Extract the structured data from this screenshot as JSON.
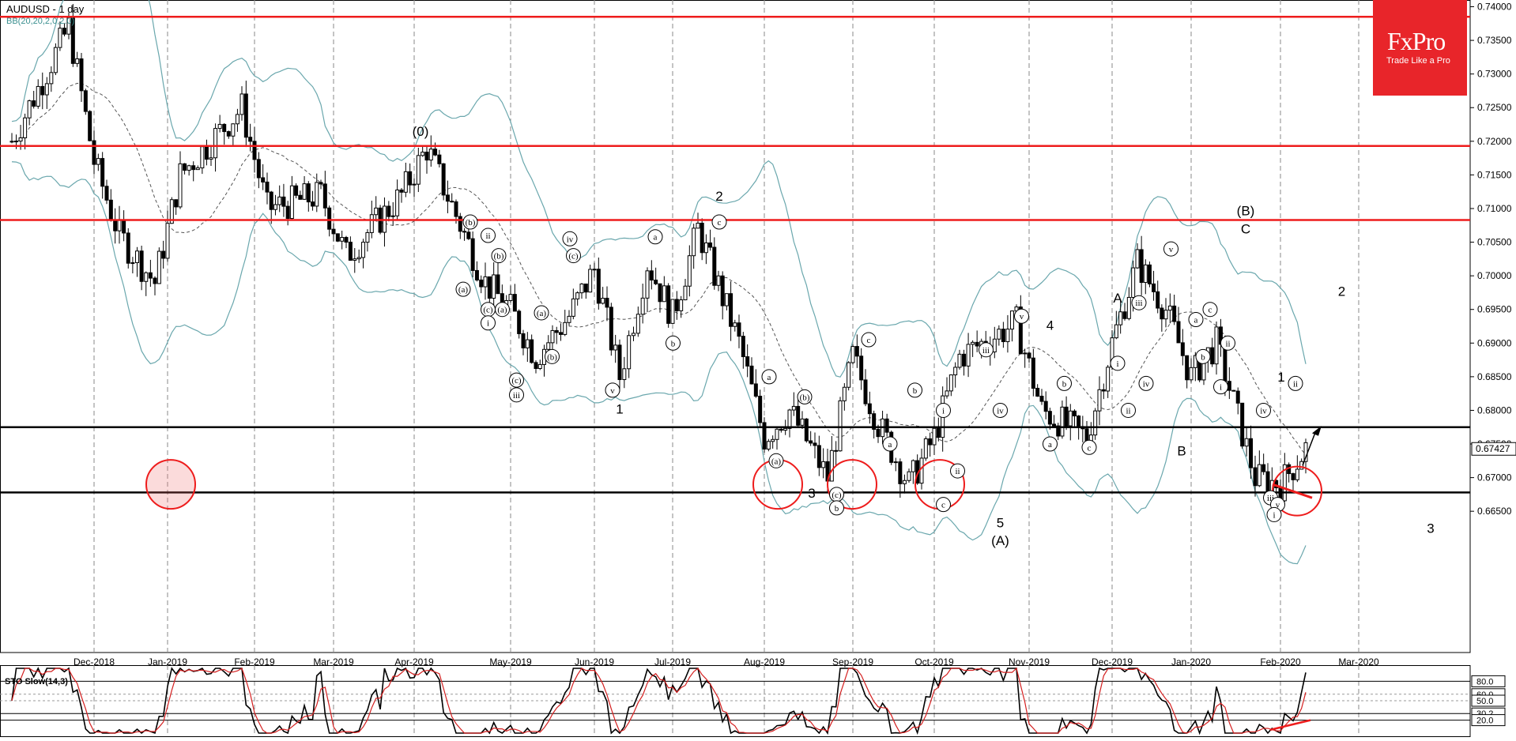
{
  "header": {
    "symbol_label": "AUDUSD - 1 day",
    "indicator_label": "BB(20,20,2,0,2.0)"
  },
  "logo": {
    "brand": "FxPro",
    "tagline": "Trade Like a Pro"
  },
  "oscillator": {
    "label": "STO Slow(14,3)",
    "levels": [
      "80.0",
      "60.0",
      "50.0",
      "30.2",
      "20.0"
    ]
  },
  "chart_data": {
    "type": "candlestick",
    "symbol": "AUDUSD",
    "timeframe": "1 day",
    "ylim": [
      0.644,
      0.741
    ],
    "price_ticks": [
      "0.74000",
      "0.73500",
      "0.73000",
      "0.72500",
      "0.72000",
      "0.71500",
      "0.71000",
      "0.70500",
      "0.70000",
      "0.69500",
      "0.69000",
      "0.68500",
      "0.68000",
      "0.67500",
      "0.67000",
      "0.66500"
    ],
    "current_price": "0.67427",
    "x_labels": [
      "Dec-2018",
      "Jan-2019",
      "Feb-2019",
      "Mar-2019",
      "Apr-2019",
      "May-2019",
      "Jun-2019",
      "Jul-2019",
      "Aug-2019",
      "Sep-2019",
      "Oct-2019",
      "Nov-2019",
      "Dec-2019",
      "Jan-2020",
      "Feb-2020",
      "Mar-2020"
    ],
    "grid": true,
    "red_levels": [
      0.7385,
      0.7193,
      0.7083
    ],
    "black_levels": [
      0.6775,
      0.6678
    ],
    "price_path": [
      {
        "date": "Nov-2018",
        "price": 0.72
      },
      {
        "date": "Dec-2018",
        "price": 0.737
      },
      {
        "date": "Dec-2018",
        "price": 0.717
      },
      {
        "date": "Dec-2018",
        "price": 0.706
      },
      {
        "date": "Jan-2019",
        "price": 0.699
      },
      {
        "date": "Jan-2019",
        "price": 0.715
      },
      {
        "date": "Feb-2019",
        "price": 0.725
      },
      {
        "date": "Feb-2019",
        "price": 0.71
      },
      {
        "date": "Mar-2019",
        "price": 0.712
      },
      {
        "date": "Mar-2019",
        "price": 0.703
      },
      {
        "date": "Apr-2019",
        "price": 0.712
      },
      {
        "date": "Apr-2019",
        "price": 0.719
      },
      {
        "date": "May-2019",
        "price": 0.699
      },
      {
        "date": "May-2019",
        "price": 0.695
      },
      {
        "date": "May-2019",
        "price": 0.688
      },
      {
        "date": "Jun-2019",
        "price": 0.694
      },
      {
        "date": "Jun-2019",
        "price": 0.701
      },
      {
        "date": "Jun-2019",
        "price": 0.685
      },
      {
        "date": "Jul-2019",
        "price": 0.702
      },
      {
        "date": "Jul-2019",
        "price": 0.694
      },
      {
        "date": "Jul-2019",
        "price": 0.707
      },
      {
        "date": "Aug-2019",
        "price": 0.69
      },
      {
        "date": "Aug-2019",
        "price": 0.676
      },
      {
        "date": "Aug-2019",
        "price": 0.68
      },
      {
        "date": "Sep-2019",
        "price": 0.67
      },
      {
        "date": "Sep-2019",
        "price": 0.688
      },
      {
        "date": "Sep-2019",
        "price": 0.678
      },
      {
        "date": "Oct-2019",
        "price": 0.669
      },
      {
        "date": "Oct-2019",
        "price": 0.676
      },
      {
        "date": "Oct-2019",
        "price": 0.688
      },
      {
        "date": "Nov-2019",
        "price": 0.693
      },
      {
        "date": "Nov-2019",
        "price": 0.68
      },
      {
        "date": "Dec-2019",
        "price": 0.676
      },
      {
        "date": "Dec-2019",
        "price": 0.69
      },
      {
        "date": "Dec-2019",
        "price": 0.702
      },
      {
        "date": "Jan-2020",
        "price": 0.695
      },
      {
        "date": "Jan-2020",
        "price": 0.685
      },
      {
        "date": "Jan-2020",
        "price": 0.69
      },
      {
        "date": "Feb-2020",
        "price": 0.67
      },
      {
        "date": "Feb-2020",
        "price": 0.669
      },
      {
        "date": "Feb-2020",
        "price": 0.6743
      }
    ],
    "annotations": [
      {
        "text": "(0)",
        "x_index": 11.6,
        "price": 0.7208
      },
      {
        "text": "2",
        "x_index": 20.0,
        "price": 0.7112
      },
      {
        "text": "4",
        "x_index": 29.3,
        "price": 0.692
      },
      {
        "text": "A",
        "x_index": 31.2,
        "price": 0.696
      },
      {
        "text": "(B)",
        "x_index": 34.8,
        "price": 0.709
      },
      {
        "text": "C",
        "x_index": 34.8,
        "price": 0.7063
      },
      {
        "text": "2",
        "x_index": 37.5,
        "price": 0.697
      },
      {
        "text": "1",
        "x_index": 17.2,
        "price": 0.6795
      },
      {
        "text": "3",
        "x_index": 22.6,
        "price": 0.667
      },
      {
        "text": "5",
        "x_index": 27.9,
        "price": 0.6626
      },
      {
        "text": "(A)",
        "x_index": 27.9,
        "price": 0.66
      },
      {
        "text": "B",
        "x_index": 33.0,
        "price": 0.6733
      },
      {
        "text": "1",
        "x_index": 35.8,
        "price": 0.6843
      },
      {
        "text": "3",
        "x_index": 40.0,
        "price": 0.6618
      }
    ],
    "circled_labels": [
      {
        "text": "(b)",
        "x_index": 13.0,
        "price": 0.708
      },
      {
        "text": "ii",
        "x_index": 13.5,
        "price": 0.706
      },
      {
        "text": "(b)",
        "x_index": 13.8,
        "price": 0.703
      },
      {
        "text": "(a)",
        "x_index": 12.8,
        "price": 0.698
      },
      {
        "text": "(c)",
        "x_index": 13.5,
        "price": 0.695
      },
      {
        "text": "(a)",
        "x_index": 13.9,
        "price": 0.695
      },
      {
        "text": "i",
        "x_index": 13.5,
        "price": 0.693
      },
      {
        "text": "(c)",
        "x_index": 14.3,
        "price": 0.6845
      },
      {
        "text": "iii",
        "x_index": 14.3,
        "price": 0.6823
      },
      {
        "text": "(a)",
        "x_index": 15.0,
        "price": 0.6945
      },
      {
        "text": "(b)",
        "x_index": 15.3,
        "price": 0.688
      },
      {
        "text": "iv",
        "x_index": 15.8,
        "price": 0.7055
      },
      {
        "text": "(c)",
        "x_index": 15.9,
        "price": 0.703
      },
      {
        "text": "v",
        "x_index": 17.0,
        "price": 0.683
      },
      {
        "text": "a",
        "x_index": 18.2,
        "price": 0.7058
      },
      {
        "text": "b",
        "x_index": 18.7,
        "price": 0.69
      },
      {
        "text": "c",
        "x_index": 20.0,
        "price": 0.708
      },
      {
        "text": "a",
        "x_index": 21.4,
        "price": 0.685
      },
      {
        "text": "(a)",
        "x_index": 21.6,
        "price": 0.6725
      },
      {
        "text": "(b)",
        "x_index": 22.4,
        "price": 0.682
      },
      {
        "text": "(c)",
        "x_index": 23.3,
        "price": 0.6675
      },
      {
        "text": "b",
        "x_index": 23.3,
        "price": 0.6655
      },
      {
        "text": "c",
        "x_index": 24.2,
        "price": 0.6905
      },
      {
        "text": "a",
        "x_index": 24.8,
        "price": 0.675
      },
      {
        "text": "b",
        "x_index": 25.5,
        "price": 0.683
      },
      {
        "text": "i",
        "x_index": 26.3,
        "price": 0.68
      },
      {
        "text": "c",
        "x_index": 26.3,
        "price": 0.666
      },
      {
        "text": "ii",
        "x_index": 26.7,
        "price": 0.671
      },
      {
        "text": "iii",
        "x_index": 27.5,
        "price": 0.689
      },
      {
        "text": "iv",
        "x_index": 27.9,
        "price": 0.68
      },
      {
        "text": "v",
        "x_index": 28.5,
        "price": 0.694
      },
      {
        "text": "a",
        "x_index": 29.3,
        "price": 0.675
      },
      {
        "text": "b",
        "x_index": 29.7,
        "price": 0.684
      },
      {
        "text": "c",
        "x_index": 30.4,
        "price": 0.6745
      },
      {
        "text": "i",
        "x_index": 31.2,
        "price": 0.687
      },
      {
        "text": "ii",
        "x_index": 31.5,
        "price": 0.68
      },
      {
        "text": "iii",
        "x_index": 31.8,
        "price": 0.696
      },
      {
        "text": "iv",
        "x_index": 32.0,
        "price": 0.684
      },
      {
        "text": "v",
        "x_index": 32.7,
        "price": 0.704
      },
      {
        "text": "a",
        "x_index": 33.4,
        "price": 0.6935
      },
      {
        "text": "c",
        "x_index": 33.8,
        "price": 0.695
      },
      {
        "text": "b",
        "x_index": 33.6,
        "price": 0.688
      },
      {
        "text": "ii",
        "x_index": 34.3,
        "price": 0.69
      },
      {
        "text": "i",
        "x_index": 34.1,
        "price": 0.6835
      },
      {
        "text": "iv",
        "x_index": 35.3,
        "price": 0.68
      },
      {
        "text": "iii",
        "x_index": 35.5,
        "price": 0.667
      },
      {
        "text": "v",
        "x_index": 35.7,
        "price": 0.666
      },
      {
        "text": "i",
        "x_index": 35.6,
        "price": 0.6645
      },
      {
        "text": "ii",
        "x_index": 36.2,
        "price": 0.684
      }
    ],
    "circled_zones": [
      {
        "date": "Jan-2019",
        "price": 0.669
      },
      {
        "date": "Aug-2019",
        "price": 0.669
      },
      {
        "date": "Sep-2019",
        "price": 0.669
      },
      {
        "date": "Oct-2019",
        "price": 0.669
      },
      {
        "date": "Feb-2020",
        "price": 0.668
      }
    ]
  }
}
